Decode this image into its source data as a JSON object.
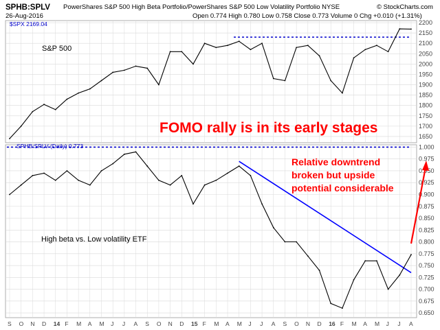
{
  "header": {
    "symbol": "SPHB:SPLV",
    "title": "PowerShares S&P 500 High Beta Portfolio/PowerShares S&P 500 Low Volatility Portfolio NYSE",
    "copyright": "© StockCharts.com",
    "date": "26-Aug-2016",
    "quote": "Open 0.774  High 0.780  Low 0.758  Close 0.773  Volume 0  Chg +0.010 (+1.31%)"
  },
  "upper_legend": "$SPX 2169.04",
  "lower_legend": "SPHB:SPLV (Daily) 0.773",
  "colors": {
    "price": "#000000",
    "annotation": "#ff0000",
    "trendline": "#0000ff",
    "level": "#0000cc",
    "grid": "#d9d9d9"
  },
  "chart_data": [
    {
      "type": "line",
      "label": "S&P 500",
      "title": "FOMO rally is in its early stages",
      "series": [
        {
          "name": "$SPX",
          "values": [
            {
              "x": "2013-09",
              "y": 1640
            },
            {
              "x": "2013-10",
              "y": 1700
            },
            {
              "x": "2013-11",
              "y": 1770
            },
            {
              "x": "2013-12",
              "y": 1805
            },
            {
              "x": "2014-01",
              "y": 1780
            },
            {
              "x": "2014-02",
              "y": 1830
            },
            {
              "x": "2014-03",
              "y": 1860
            },
            {
              "x": "2014-04",
              "y": 1880
            },
            {
              "x": "2014-05",
              "y": 1920
            },
            {
              "x": "2014-06",
              "y": 1960
            },
            {
              "x": "2014-07",
              "y": 1970
            },
            {
              "x": "2014-08",
              "y": 1990
            },
            {
              "x": "2014-09",
              "y": 1980
            },
            {
              "x": "2014-10",
              "y": 1900
            },
            {
              "x": "2014-11",
              "y": 2060
            },
            {
              "x": "2014-12",
              "y": 2060
            },
            {
              "x": "2015-01",
              "y": 2000
            },
            {
              "x": "2015-02",
              "y": 2100
            },
            {
              "x": "2015-03",
              "y": 2080
            },
            {
              "x": "2015-04",
              "y": 2090
            },
            {
              "x": "2015-05",
              "y": 2110
            },
            {
              "x": "2015-06",
              "y": 2070
            },
            {
              "x": "2015-07",
              "y": 2100
            },
            {
              "x": "2015-08",
              "y": 1930
            },
            {
              "x": "2015-09",
              "y": 1920
            },
            {
              "x": "2015-10",
              "y": 2080
            },
            {
              "x": "2015-11",
              "y": 2090
            },
            {
              "x": "2015-12",
              "y": 2040
            },
            {
              "x": "2016-01",
              "y": 1920
            },
            {
              "x": "2016-02",
              "y": 1860
            },
            {
              "x": "2016-03",
              "y": 2030
            },
            {
              "x": "2016-04",
              "y": 2070
            },
            {
              "x": "2016-05",
              "y": 2090
            },
            {
              "x": "2016-06",
              "y": 2060
            },
            {
              "x": "2016-07",
              "y": 2170
            },
            {
              "x": "2016-08",
              "y": 2169
            }
          ]
        }
      ],
      "resistance_level": 2130,
      "y_ticks": [
        1650,
        1700,
        1750,
        1800,
        1850,
        1900,
        1950,
        2000,
        2050,
        2100,
        2150,
        2200
      ],
      "ylim": [
        1620,
        2210
      ]
    },
    {
      "type": "line",
      "label": "High beta vs. Low volatility ETF",
      "annotation": "Relative downtrend broken but upside potential considerable",
      "series": [
        {
          "name": "SPHB:SPLV",
          "values": [
            {
              "x": "2013-09",
              "y": 0.9
            },
            {
              "x": "2013-10",
              "y": 0.92
            },
            {
              "x": "2013-11",
              "y": 0.94
            },
            {
              "x": "2013-12",
              "y": 0.945
            },
            {
              "x": "2014-01",
              "y": 0.93
            },
            {
              "x": "2014-02",
              "y": 0.95
            },
            {
              "x": "2014-03",
              "y": 0.93
            },
            {
              "x": "2014-04",
              "y": 0.92
            },
            {
              "x": "2014-05",
              "y": 0.95
            },
            {
              "x": "2014-06",
              "y": 0.965
            },
            {
              "x": "2014-07",
              "y": 0.985
            },
            {
              "x": "2014-08",
              "y": 0.99
            },
            {
              "x": "2014-09",
              "y": 0.96
            },
            {
              "x": "2014-10",
              "y": 0.93
            },
            {
              "x": "2014-11",
              "y": 0.92
            },
            {
              "x": "2014-12",
              "y": 0.94
            },
            {
              "x": "2015-01",
              "y": 0.88
            },
            {
              "x": "2015-02",
              "y": 0.92
            },
            {
              "x": "2015-03",
              "y": 0.93
            },
            {
              "x": "2015-04",
              "y": 0.945
            },
            {
              "x": "2015-05",
              "y": 0.96
            },
            {
              "x": "2015-06",
              "y": 0.94
            },
            {
              "x": "2015-07",
              "y": 0.88
            },
            {
              "x": "2015-08",
              "y": 0.83
            },
            {
              "x": "2015-09",
              "y": 0.8
            },
            {
              "x": "2015-10",
              "y": 0.8
            },
            {
              "x": "2015-11",
              "y": 0.77
            },
            {
              "x": "2015-12",
              "y": 0.74
            },
            {
              "x": "2016-01",
              "y": 0.67
            },
            {
              "x": "2016-02",
              "y": 0.66
            },
            {
              "x": "2016-03",
              "y": 0.72
            },
            {
              "x": "2016-04",
              "y": 0.76
            },
            {
              "x": "2016-05",
              "y": 0.76
            },
            {
              "x": "2016-06",
              "y": 0.7
            },
            {
              "x": "2016-07",
              "y": 0.73
            },
            {
              "x": "2016-08",
              "y": 0.773
            }
          ]
        }
      ],
      "resistance_level": 1.0,
      "trendline": [
        {
          "x": "2015-05",
          "y": 0.97
        },
        {
          "x": "2016-08",
          "y": 0.735
        }
      ],
      "y_ticks": [
        0.65,
        0.675,
        0.7,
        0.725,
        0.75,
        0.775,
        0.8,
        0.825,
        0.85,
        0.875,
        0.9,
        0.925,
        0.95,
        0.975,
        1.0
      ],
      "ylim": [
        0.64,
        1.005
      ]
    }
  ],
  "x_axis": {
    "labels": [
      "S",
      "O",
      "N",
      "D",
      "14",
      "F",
      "M",
      "A",
      "M",
      "J",
      "J",
      "A",
      "S",
      "O",
      "N",
      "D",
      "15",
      "F",
      "M",
      "A",
      "M",
      "J",
      "J",
      "A",
      "S",
      "O",
      "N",
      "D",
      "16",
      "F",
      "M",
      "A",
      "M",
      "J",
      "J",
      "A"
    ]
  }
}
